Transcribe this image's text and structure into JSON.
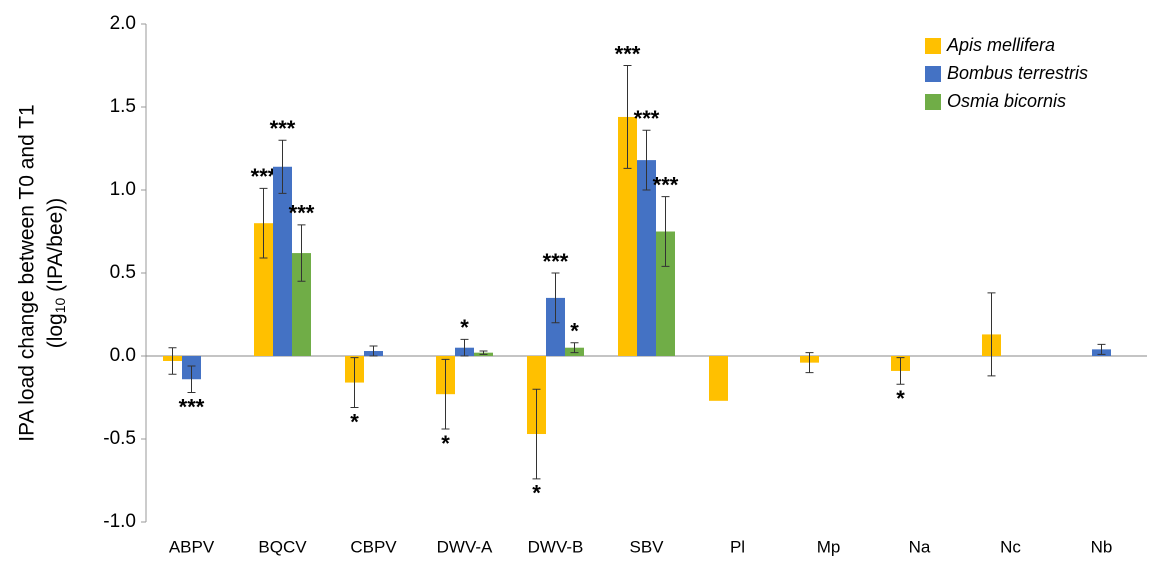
{
  "chart_data": {
    "type": "bar",
    "ylabel": "IPA load change between T0 and T1",
    "ylabel_line2": {
      "prefix": "(log",
      "sub": "10",
      "suffix": " (IPA/bee))"
    },
    "categories": [
      "ABPV",
      "BQCV",
      "CBPV",
      "DWV-A",
      "DWV-B",
      "SBV",
      "Pl",
      "Mp",
      "Na",
      "Nc",
      "Nb"
    ],
    "series": [
      {
        "name": "Apis mellifera",
        "color": "#FFC000",
        "values": [
          -0.03,
          0.8,
          -0.16,
          -0.23,
          -0.47,
          1.44,
          -0.27,
          -0.04,
          -0.09,
          0.13,
          null
        ],
        "errors": [
          0.08,
          0.21,
          0.15,
          0.21,
          0.27,
          0.31,
          null,
          0.06,
          0.08,
          0.25,
          null
        ],
        "significance": [
          null,
          "***",
          "*",
          "*",
          "*",
          "***",
          null,
          null,
          "*",
          null,
          null
        ]
      },
      {
        "name": "Bombus terrestris",
        "color": "#4472C4",
        "values": [
          -0.14,
          1.14,
          0.03,
          0.05,
          0.35,
          1.18,
          null,
          null,
          null,
          null,
          0.04
        ],
        "errors": [
          0.08,
          0.16,
          0.03,
          0.05,
          0.15,
          0.18,
          null,
          null,
          null,
          null,
          0.03
        ],
        "significance": [
          "***",
          "***",
          null,
          "*",
          "***",
          "***",
          null,
          null,
          null,
          null,
          null
        ]
      },
      {
        "name": "Osmia bicornis",
        "color": "#70AD47",
        "values": [
          null,
          0.62,
          null,
          0.02,
          0.05,
          0.75,
          null,
          null,
          null,
          null,
          null
        ],
        "errors": [
          null,
          0.17,
          null,
          0.01,
          0.03,
          0.21,
          null,
          null,
          null,
          null,
          null
        ],
        "significance": [
          null,
          "***",
          null,
          null,
          "*",
          "***",
          null,
          null,
          null,
          null,
          null
        ]
      }
    ],
    "ylim": [
      -1,
      2
    ],
    "yticks": [
      {
        "value": 2,
        "label": "2.0"
      },
      1.5,
      {
        "value": 1,
        "label": "1.0"
      },
      0.5,
      {
        "value": 0,
        "label": "0.0"
      },
      -0.5,
      {
        "value": -1,
        "label": "-1.0"
      }
    ],
    "legend": "top-right"
  }
}
